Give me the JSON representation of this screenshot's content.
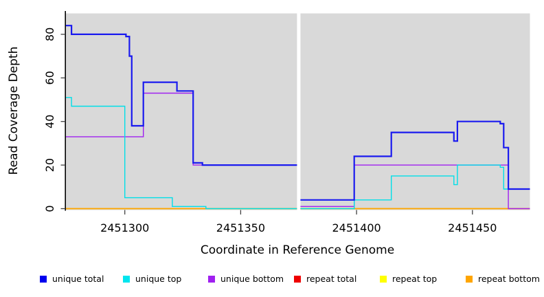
{
  "figure": {
    "background": "#ffffff",
    "plot_background": "#d9d9d9",
    "gap_band_color": "#ffffff",
    "axis_color": "#000000",
    "tick_color": "#404040"
  },
  "axes": {
    "xlabel": "Coordinate in Reference Genome",
    "ylabel": "Read Coverage Depth",
    "xticks": [
      {
        "value": 2451300,
        "label": "2451300"
      },
      {
        "value": 2451350,
        "label": "2451350"
      },
      {
        "value": 2451400,
        "label": "2451400"
      },
      {
        "value": 2451450,
        "label": "2451450"
      }
    ],
    "yticks": [
      {
        "value": 0,
        "label": "0"
      },
      {
        "value": 20,
        "label": "20"
      },
      {
        "value": 40,
        "label": "40"
      },
      {
        "value": 60,
        "label": "60"
      },
      {
        "value": 80,
        "label": "80"
      }
    ]
  },
  "chart_data": {
    "type": "line",
    "step": "after",
    "title": "",
    "xlabel": "Coordinate in Reference Genome",
    "ylabel": "Read Coverage Depth",
    "xlim": [
      2451274.6,
      2451474.8
    ],
    "ylim": [
      0,
      89
    ],
    "grid": false,
    "legend_position": "bottom",
    "gap": {
      "start": 2451374.3,
      "end": 2451375.8
    },
    "series": [
      {
        "name": "unique total",
        "color": "#1a1aef",
        "width": 2.2,
        "segments": [
          [
            [
              2451274.6,
              84
            ],
            [
              2451277,
              80
            ],
            [
              2451300.5,
              79
            ],
            [
              2451302,
              70
            ],
            [
              2451303,
              38
            ],
            [
              2451308,
              58
            ],
            [
              2451322.5,
              54
            ],
            [
              2451329.5,
              21
            ],
            [
              2451333.5,
              20
            ],
            [
              2451374.3,
              20
            ]
          ],
          [
            [
              2451375.8,
              4
            ],
            [
              2451399,
              24
            ],
            [
              2451415,
              35
            ],
            [
              2451442,
              31
            ],
            [
              2451443.5,
              40
            ],
            [
              2451462,
              39
            ],
            [
              2451463.5,
              28
            ],
            [
              2451465.5,
              9
            ],
            [
              2451474.8,
              9
            ]
          ]
        ]
      },
      {
        "name": "unique top",
        "color": "#00dfe8",
        "width": 1.4,
        "segments": [
          [
            [
              2451274.6,
              51
            ],
            [
              2451277,
              47
            ],
            [
              2451300,
              5
            ],
            [
              2451320.5,
              1
            ],
            [
              2451335,
              0
            ],
            [
              2451374.3,
              0
            ]
          ],
          [
            [
              2451375.8,
              0
            ],
            [
              2451399,
              4
            ],
            [
              2451415,
              15
            ],
            [
              2451442,
              11
            ],
            [
              2451443.5,
              20
            ],
            [
              2451462,
              19
            ],
            [
              2451463.5,
              9
            ],
            [
              2451474.8,
              9
            ]
          ]
        ]
      },
      {
        "name": "unique bottom",
        "color": "#a020f0",
        "width": 1.4,
        "segments": [
          [
            [
              2451274.6,
              33
            ],
            [
              2451308,
              53
            ],
            [
              2451329.5,
              20
            ],
            [
              2451374.3,
              20
            ]
          ],
          [
            [
              2451375.8,
              1
            ],
            [
              2451399,
              20
            ],
            [
              2451465.5,
              0
            ],
            [
              2451474.8,
              0
            ]
          ]
        ]
      },
      {
        "name": "repeat total",
        "color": "#ee0000",
        "width": 1.4,
        "segments": [
          [
            [
              2451274.6,
              0
            ],
            [
              2451374.3,
              0
            ]
          ],
          [
            [
              2451375.8,
              0
            ],
            [
              2451474.8,
              0
            ]
          ]
        ]
      },
      {
        "name": "repeat top",
        "color": "#ffff00",
        "width": 1.4,
        "segments": [
          [
            [
              2451274.6,
              0
            ],
            [
              2451374.3,
              0
            ]
          ],
          [
            [
              2451375.8,
              0
            ],
            [
              2451474.8,
              0
            ]
          ]
        ]
      },
      {
        "name": "repeat bottom",
        "color": "#ffa500",
        "width": 1.4,
        "segments": [
          [
            [
              2451274.6,
              0
            ],
            [
              2451374.3,
              0
            ]
          ],
          [
            [
              2451375.8,
              0
            ],
            [
              2451474.8,
              0
            ]
          ]
        ]
      }
    ]
  },
  "legend": {
    "items": [
      {
        "label": "unique total",
        "color": "#0000ee"
      },
      {
        "label": "unique top",
        "color": "#00e5ee"
      },
      {
        "label": "unique bottom",
        "color": "#a020f0"
      },
      {
        "label": "repeat total",
        "color": "#ee0000"
      },
      {
        "label": "repeat top",
        "color": "#ffff00"
      },
      {
        "label": "repeat bottom",
        "color": "#ffa500"
      }
    ]
  }
}
